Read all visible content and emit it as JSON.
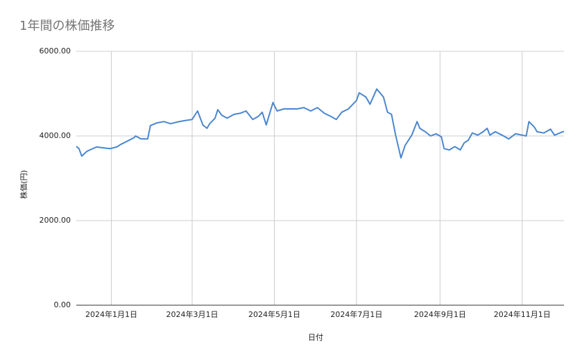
{
  "chart_data": {
    "type": "line",
    "title": "1年間の株価推移",
    "x_label": "日付",
    "y_label": "株価(円)",
    "x": [
      "2023-12-06",
      "2023-12-08",
      "2023-12-10",
      "2023-12-14",
      "2023-12-21",
      "2023-12-26",
      "2023-12-31",
      "2024-01-05",
      "2024-01-08",
      "2024-01-13",
      "2024-01-18",
      "2024-01-19",
      "2024-01-23",
      "2024-01-28",
      "2024-01-30",
      "2024-02-04",
      "2024-02-09",
      "2024-02-14",
      "2024-02-19",
      "2024-02-24",
      "2024-03-01",
      "2024-03-05",
      "2024-03-09",
      "2024-03-12",
      "2024-03-14",
      "2024-03-18",
      "2024-03-20",
      "2024-03-23",
      "2024-03-27",
      "2024-04-01",
      "2024-04-06",
      "2024-04-10",
      "2024-04-15",
      "2024-04-19",
      "2024-04-22",
      "2024-04-25",
      "2024-04-30",
      "2024-05-03",
      "2024-05-08",
      "2024-05-13",
      "2024-05-18",
      "2024-05-23",
      "2024-05-28",
      "2024-06-02",
      "2024-06-07",
      "2024-06-12",
      "2024-06-16",
      "2024-06-20",
      "2024-06-25",
      "2024-07-01",
      "2024-07-03",
      "2024-07-08",
      "2024-07-11",
      "2024-07-16",
      "2024-07-21",
      "2024-07-24",
      "2024-07-27",
      "2024-07-30",
      "2024-08-03",
      "2024-08-06",
      "2024-08-11",
      "2024-08-15",
      "2024-08-17",
      "2024-08-21",
      "2024-08-25",
      "2024-08-29",
      "2024-09-02",
      "2024-09-04",
      "2024-09-08",
      "2024-09-12",
      "2024-09-16",
      "2024-09-19",
      "2024-09-22",
      "2024-09-25",
      "2024-09-29",
      "2024-10-03",
      "2024-10-06",
      "2024-10-08",
      "2024-10-12",
      "2024-10-17",
      "2024-10-22",
      "2024-10-27",
      "2024-11-01",
      "2024-11-04",
      "2024-11-06",
      "2024-11-10",
      "2024-11-12",
      "2024-11-17",
      "2024-11-22",
      "2024-11-25",
      "2024-11-29",
      "2024-12-02"
    ],
    "series": [
      {
        "name": "株価(円)",
        "color": "#4a86d0",
        "values": [
          3754,
          3700,
          3525,
          3640,
          3740,
          3720,
          3700,
          3740,
          3800,
          3880,
          3960,
          4000,
          3930,
          3930,
          4245,
          4310,
          4340,
          4290,
          4330,
          4360,
          4390,
          4590,
          4260,
          4180,
          4290,
          4420,
          4620,
          4490,
          4420,
          4510,
          4540,
          4590,
          4390,
          4460,
          4560,
          4260,
          4790,
          4590,
          4640,
          4640,
          4640,
          4670,
          4590,
          4670,
          4540,
          4460,
          4390,
          4560,
          4640,
          4840,
          5020,
          4920,
          4750,
          5110,
          4920,
          4560,
          4510,
          4020,
          3480,
          3770,
          4020,
          4340,
          4180,
          4100,
          4000,
          4050,
          3980,
          3700,
          3670,
          3750,
          3670,
          3840,
          3900,
          4070,
          4020,
          4100,
          4180,
          4020,
          4100,
          4020,
          3930,
          4050,
          4020,
          4000,
          4340,
          4210,
          4100,
          4070,
          4160,
          4020,
          4070,
          4110
        ]
      }
    ],
    "xlim": [
      "2023-12-06",
      "2024-12-02"
    ],
    "xticks": [
      {
        "value": "2024-01-01",
        "label": "2024年1月1日"
      },
      {
        "value": "2024-03-01",
        "label": "2024年3月1日"
      },
      {
        "value": "2024-05-01",
        "label": "2024年5月1日"
      },
      {
        "value": "2024-07-01",
        "label": "2024年7月1日"
      },
      {
        "value": "2024-09-01",
        "label": "2024年9月1日"
      },
      {
        "value": "2024-11-01",
        "label": "2024年11月1日"
      }
    ],
    "ylim": [
      0,
      6000
    ],
    "yticks": [
      {
        "value": 0,
        "label": "0.00"
      },
      {
        "value": 2000,
        "label": "2000.00"
      },
      {
        "value": 4000,
        "label": "4000.00"
      },
      {
        "value": 6000,
        "label": "6000.00"
      }
    ],
    "grid": true
  }
}
